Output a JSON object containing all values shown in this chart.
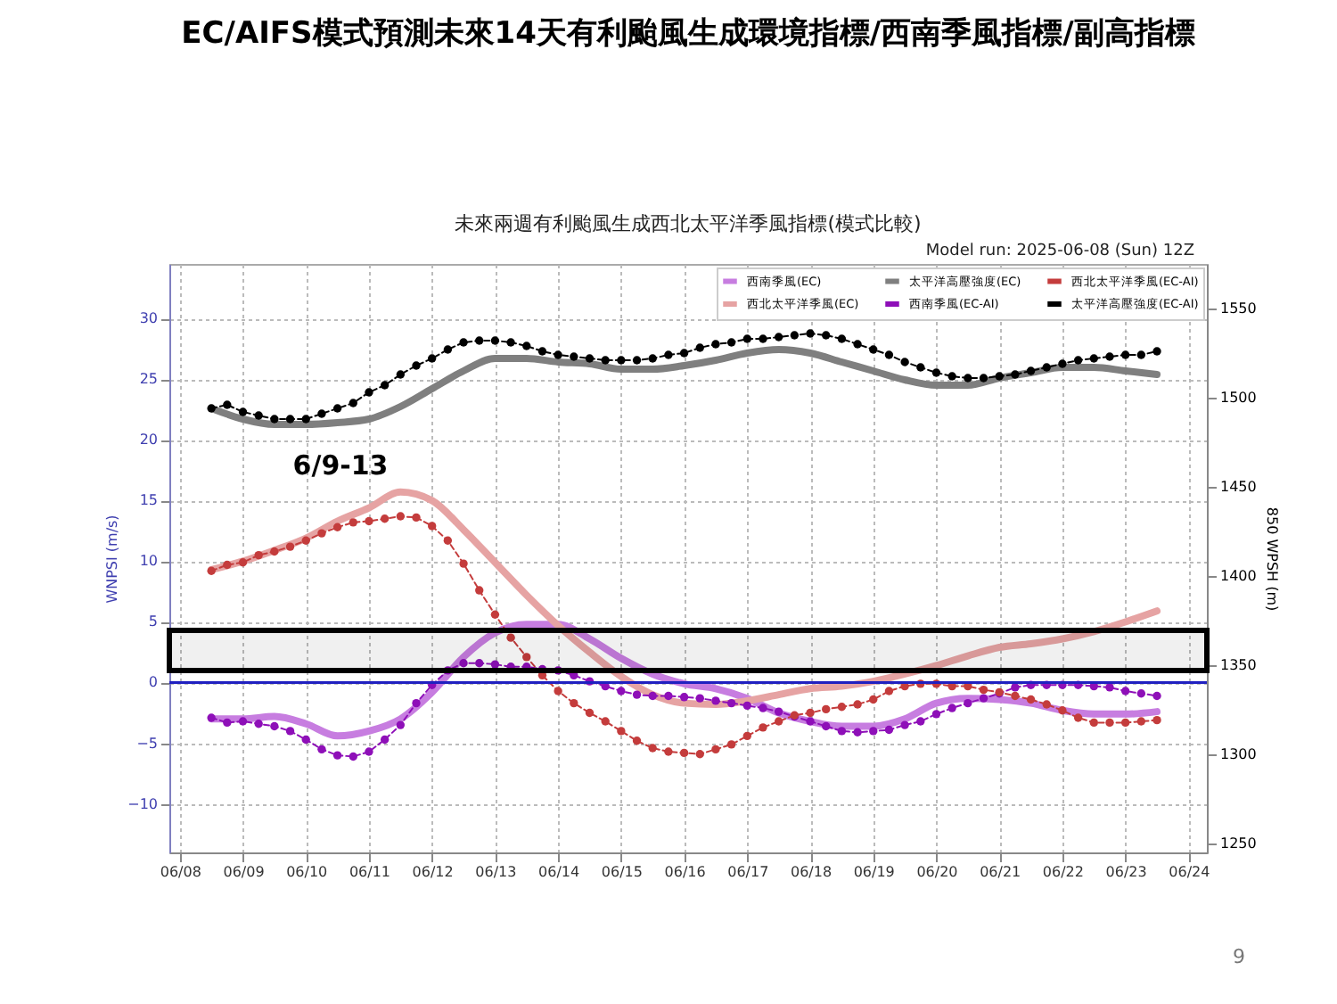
{
  "chart_data": {
    "type": "line",
    "title": "EC/AIFS模式預測未來14天有利颱風生成環境指標/西南季風指標/副高指標",
    "subtitle": "未來兩週有利颱風生成西北太平洋季風指標(模式比較)",
    "xlabel": null,
    "ylabel": "WNPSI (m/s)",
    "y2label": "850 WPSH (m)",
    "annotations": [
      "6/9-13",
      "Model run: 2025-06-08 (Sun) 12Z",
      "9"
    ],
    "x": [
      "2025-06-08T12:00",
      "2025-06-08T18:00",
      "2025-06-09T00:00",
      "2025-06-09T06:00",
      "2025-06-09T12:00",
      "2025-06-09T18:00",
      "2025-06-10T00:00",
      "2025-06-10T06:00",
      "2025-06-10T12:00",
      "2025-06-10T18:00",
      "2025-06-11T00:00",
      "2025-06-11T06:00",
      "2025-06-11T12:00",
      "2025-06-11T18:00",
      "2025-06-12T00:00",
      "2025-06-12T06:00",
      "2025-06-12T12:00",
      "2025-06-12T18:00",
      "2025-06-13T00:00",
      "2025-06-13T06:00",
      "2025-06-13T12:00",
      "2025-06-13T18:00",
      "2025-06-14T00:00",
      "2025-06-14T06:00",
      "2025-06-14T12:00",
      "2025-06-14T18:00",
      "2025-06-15T00:00",
      "2025-06-15T06:00",
      "2025-06-15T12:00",
      "2025-06-15T18:00",
      "2025-06-16T00:00",
      "2025-06-16T06:00",
      "2025-06-16T12:00",
      "2025-06-16T18:00",
      "2025-06-17T00:00",
      "2025-06-17T06:00",
      "2025-06-17T12:00",
      "2025-06-17T18:00",
      "2025-06-18T00:00",
      "2025-06-18T06:00",
      "2025-06-18T12:00",
      "2025-06-18T18:00",
      "2025-06-19T00:00",
      "2025-06-19T06:00",
      "2025-06-19T12:00",
      "2025-06-19T18:00",
      "2025-06-20T00:00",
      "2025-06-20T06:00",
      "2025-06-20T12:00",
      "2025-06-20T18:00",
      "2025-06-21T00:00",
      "2025-06-21T06:00",
      "2025-06-21T12:00",
      "2025-06-21T18:00",
      "2025-06-22T00:00",
      "2025-06-22T06:00",
      "2025-06-22T12:00",
      "2025-06-22T18:00",
      "2025-06-23T00:00",
      "2025-06-23T06:00",
      "2025-06-23T12:00"
    ],
    "series": [
      {
        "name": "西南季風(EC)",
        "color": "#c77de0",
        "marker": "none",
        "line_style": "solid",
        "x": [
          "2025-06-08T12:00",
          "2025-06-09T00:00",
          "2025-06-09T12:00",
          "2025-06-10T00:00",
          "2025-06-10T12:00",
          "2025-06-11T00:00",
          "2025-06-11T12:00",
          "2025-06-12T00:00",
          "2025-06-12T12:00",
          "2025-06-13T00:00",
          "2025-06-13T12:00",
          "2025-06-14T00:00",
          "2025-06-14T12:00",
          "2025-06-15T00:00",
          "2025-06-15T12:00",
          "2025-06-16T00:00",
          "2025-06-16T12:00",
          "2025-06-17T00:00",
          "2025-06-17T12:00",
          "2025-06-18T00:00",
          "2025-06-18T12:00",
          "2025-06-19T00:00",
          "2025-06-19T12:00",
          "2025-06-20T00:00",
          "2025-06-20T12:00",
          "2025-06-21T00:00",
          "2025-06-21T12:00",
          "2025-06-22T00:00",
          "2025-06-22T12:00",
          "2025-06-23T00:00",
          "2025-06-23T12:00"
        ],
        "values": [
          -3.0,
          -3.0,
          -2.8,
          -3.4,
          -4.4,
          -4.0,
          -3.0,
          -0.8,
          2.1,
          4.1,
          4.8,
          4.8,
          3.6,
          2.0,
          0.7,
          -0.1,
          -0.5,
          -1.3,
          -2.5,
          -3.2,
          -3.6,
          -3.6,
          -3.0,
          -1.7,
          -1.3,
          -1.4,
          -1.7,
          -2.3,
          -2.6,
          -2.6,
          -2.4
        ]
      },
      {
        "name": "西北太平洋季風(EC)",
        "color": "#e6a3a3",
        "marker": "none",
        "line_style": "solid",
        "x": [
          "2025-06-08T12:00",
          "2025-06-09T00:00",
          "2025-06-09T12:00",
          "2025-06-10T00:00",
          "2025-06-10T12:00",
          "2025-06-11T00:00",
          "2025-06-11T12:00",
          "2025-06-12T00:00",
          "2025-06-12T12:00",
          "2025-06-13T00:00",
          "2025-06-13T12:00",
          "2025-06-14T00:00",
          "2025-06-14T12:00",
          "2025-06-15T00:00",
          "2025-06-15T12:00",
          "2025-06-16T00:00",
          "2025-06-16T12:00",
          "2025-06-17T00:00",
          "2025-06-17T12:00",
          "2025-06-18T00:00",
          "2025-06-18T12:00",
          "2025-06-19T00:00",
          "2025-06-19T12:00",
          "2025-06-20T00:00",
          "2025-06-20T12:00",
          "2025-06-21T00:00",
          "2025-06-21T12:00",
          "2025-06-22T00:00",
          "2025-06-22T12:00",
          "2025-06-23T00:00",
          "2025-06-23T12:00"
        ],
        "values": [
          9.3,
          10.0,
          10.9,
          11.9,
          13.3,
          14.4,
          15.7,
          15.0,
          12.6,
          9.9,
          7.2,
          4.7,
          2.5,
          0.5,
          -1.0,
          -1.7,
          -1.8,
          -1.5,
          -1.0,
          -0.5,
          -0.3,
          0.1,
          0.7,
          1.4,
          2.2,
          2.9,
          3.2,
          3.6,
          4.2,
          5.0,
          5.9
        ]
      },
      {
        "name": "太平洋高壓強度(EC)",
        "color": "#7f7f7f",
        "marker": "none",
        "line_style": "solid",
        "axis": "y2",
        "x": [
          "2025-06-08T12:00",
          "2025-06-09T00:00",
          "2025-06-09T12:00",
          "2025-06-10T00:00",
          "2025-06-10T12:00",
          "2025-06-11T00:00",
          "2025-06-11T12:00",
          "2025-06-12T00:00",
          "2025-06-12T12:00",
          "2025-06-13T00:00",
          "2025-06-13T12:00",
          "2025-06-14T00:00",
          "2025-06-14T12:00",
          "2025-06-15T00:00",
          "2025-06-15T12:00",
          "2025-06-16T00:00",
          "2025-06-16T12:00",
          "2025-06-17T00:00",
          "2025-06-17T12:00",
          "2025-06-18T00:00",
          "2025-06-18T12:00",
          "2025-06-19T00:00",
          "2025-06-19T12:00",
          "2025-06-20T00:00",
          "2025-06-20T12:00",
          "2025-06-21T00:00",
          "2025-06-21T12:00",
          "2025-06-22T00:00",
          "2025-06-22T12:00",
          "2025-06-23T00:00",
          "2025-06-23T12:00"
        ],
        "values": [
          1494,
          1488,
          1485,
          1485,
          1486,
          1488,
          1495,
          1505,
          1515,
          1522,
          1522,
          1520,
          1519,
          1516,
          1516,
          1518,
          1521,
          1525,
          1527,
          1525,
          1520,
          1515,
          1510,
          1507,
          1507,
          1511,
          1514,
          1517,
          1517,
          1515,
          1513
        ]
      },
      {
        "name": "西南季風(EC-AI)",
        "color": "#8e0fb8",
        "marker": "circle",
        "line_style": "dashed",
        "values": [
          -2.9,
          -3.3,
          -3.2,
          -3.4,
          -3.6,
          -4.0,
          -4.7,
          -5.5,
          -6.0,
          -6.1,
          -5.7,
          -4.7,
          -3.5,
          -1.7,
          -0.2,
          1.0,
          1.6,
          1.6,
          1.5,
          1.3,
          1.3,
          1.1,
          1.0,
          0.6,
          0.1,
          -0.3,
          -0.7,
          -1.0,
          -1.1,
          -1.1,
          -1.2,
          -1.3,
          -1.5,
          -1.7,
          -1.9,
          -2.1,
          -2.4,
          -2.8,
          -3.2,
          -3.6,
          -4.0,
          -4.1,
          -4.0,
          -3.9,
          -3.5,
          -3.2,
          -2.6,
          -2.1,
          -1.7,
          -1.3,
          -0.9,
          -0.4,
          -0.2,
          -0.2,
          -0.2,
          -0.2,
          -0.3,
          -0.4,
          -0.7,
          -0.9,
          -1.1
        ]
      },
      {
        "name": "西北太平洋季風(EC-AI)",
        "color": "#c43c3c",
        "marker": "circle",
        "line_style": "dashed",
        "values": [
          9.2,
          9.7,
          9.9,
          10.5,
          10.8,
          11.2,
          11.7,
          12.3,
          12.8,
          13.2,
          13.3,
          13.5,
          13.7,
          13.6,
          12.9,
          11.7,
          9.8,
          7.6,
          5.6,
          3.7,
          2.1,
          0.6,
          -0.7,
          -1.7,
          -2.5,
          -3.2,
          -4.0,
          -4.8,
          -5.4,
          -5.7,
          -5.8,
          -5.9,
          -5.5,
          -5.1,
          -4.4,
          -3.7,
          -3.2,
          -2.7,
          -2.5,
          -2.2,
          -2.0,
          -1.8,
          -1.4,
          -0.7,
          -0.3,
          -0.1,
          -0.1,
          -0.3,
          -0.3,
          -0.6,
          -0.8,
          -1.1,
          -1.4,
          -1.8,
          -2.3,
          -2.9,
          -3.3,
          -3.3,
          -3.3,
          -3.2,
          -3.1
        ]
      },
      {
        "name": "太平洋高壓強度(EC-AI)",
        "color": "#000000",
        "marker": "circle",
        "line_style": "dashed",
        "axis": "y2",
        "values": [
          1494,
          1496,
          1492,
          1490,
          1488,
          1488,
          1488,
          1491,
          1494,
          1497,
          1503,
          1507,
          1513,
          1518,
          1522,
          1527,
          1531,
          1532,
          1532,
          1531,
          1529,
          1526,
          1524,
          1523,
          1522,
          1521,
          1521,
          1521,
          1522,
          1524,
          1525,
          1528,
          1530,
          1531,
          1533,
          1533,
          1534,
          1535,
          1536,
          1535,
          1533,
          1530,
          1527,
          1524,
          1520,
          1517,
          1514,
          1512,
          1511,
          1511,
          1512,
          1513,
          1515,
          1517,
          1519,
          1521,
          1522,
          1523,
          1524,
          1524,
          1526
        ]
      }
    ],
    "xlim": [
      "2025-06-07T20:00",
      "2025-06-24T07:00"
    ],
    "xticks": [
      {
        "value": "2025-06-08T00:00",
        "label": "06/08"
      },
      {
        "value": "2025-06-09T00:00",
        "label": "06/09"
      },
      {
        "value": "2025-06-10T00:00",
        "label": "06/10"
      },
      {
        "value": "2025-06-11T00:00",
        "label": "06/11"
      },
      {
        "value": "2025-06-12T00:00",
        "label": "06/12"
      },
      {
        "value": "2025-06-13T00:00",
        "label": "06/13"
      },
      {
        "value": "2025-06-14T00:00",
        "label": "06/14"
      },
      {
        "value": "2025-06-15T00:00",
        "label": "06/15"
      },
      {
        "value": "2025-06-16T00:00",
        "label": "06/16"
      },
      {
        "value": "2025-06-17T00:00",
        "label": "06/17"
      },
      {
        "value": "2025-06-18T00:00",
        "label": "06/18"
      },
      {
        "value": "2025-06-19T00:00",
        "label": "06/19"
      },
      {
        "value": "2025-06-20T00:00",
        "label": "06/20"
      },
      {
        "value": "2025-06-21T00:00",
        "label": "06/21"
      },
      {
        "value": "2025-06-22T00:00",
        "label": "06/22"
      },
      {
        "value": "2025-06-23T00:00",
        "label": "06/23"
      },
      {
        "value": "2025-06-24T00:00",
        "label": "06/24"
      }
    ],
    "ylim": [
      -14,
      34.5
    ],
    "yticks": [
      -10,
      -5,
      0,
      5,
      10,
      15,
      20,
      25,
      30
    ],
    "y2lim": [
      1245,
      1575
    ],
    "y2ticks": [
      1250,
      1300,
      1350,
      1400,
      1450,
      1500,
      1550
    ],
    "ref_lines": [
      {
        "axis": "y",
        "value": 0,
        "color": "#2020c0"
      }
    ],
    "bands": [
      {
        "axis": "y",
        "from": 1.0,
        "to": 4.3,
        "color": "#000000"
      }
    ],
    "grid": true,
    "legend": "top right"
  }
}
